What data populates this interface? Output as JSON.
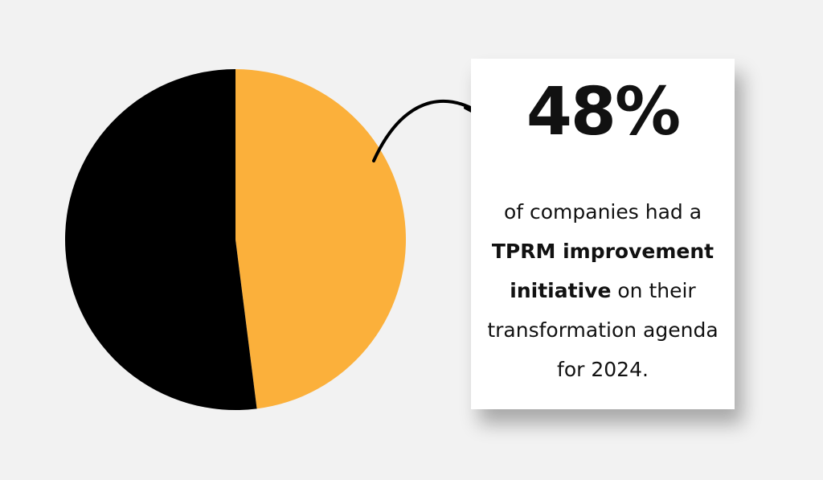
{
  "chart_data": {
    "type": "pie",
    "values": [
      48,
      52
    ],
    "colors": [
      "#fbb03b",
      "#000000"
    ],
    "start": "top, clockwise"
  },
  "stat": {
    "value": "48%",
    "lines": [
      {
        "normal": "of companies had a"
      },
      {
        "bold": "TPRM improvement"
      },
      {
        "bold": "initiative",
        "normal": " on their"
      },
      {
        "normal": "transformation agenda"
      },
      {
        "normal": "for 2024."
      }
    ]
  },
  "arrow": {
    "icon": "curved-arrow-icon"
  }
}
